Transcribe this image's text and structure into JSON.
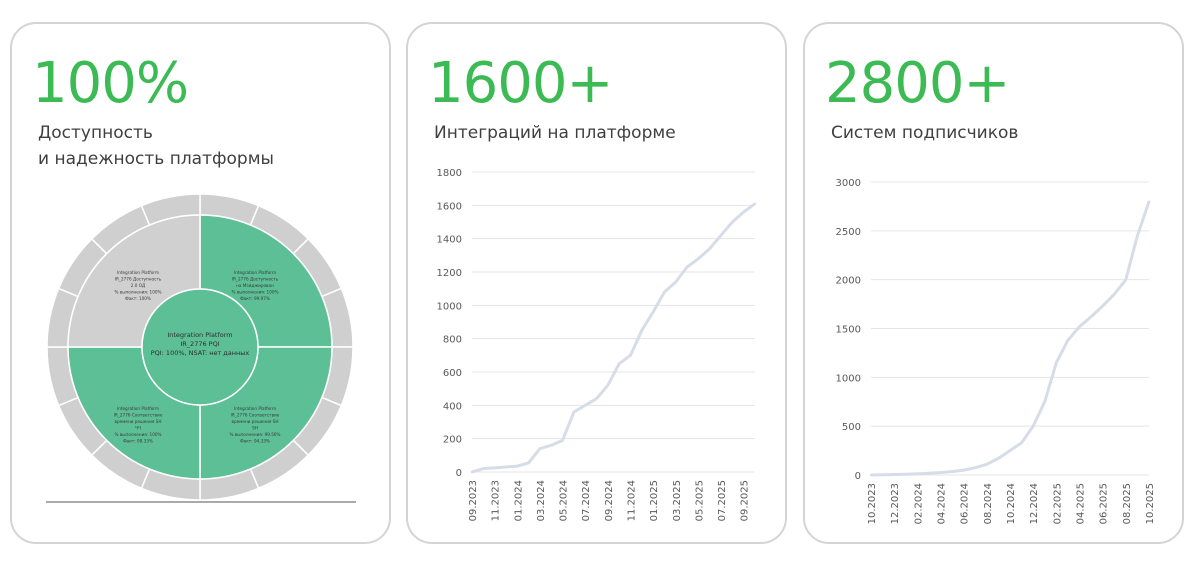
{
  "cards": [
    {
      "metric": "100%",
      "subtitle_line1": "Доступность",
      "subtitle_line2": "и надежность платформы",
      "sunburst": {
        "center_lines": [
          "Integration Platform",
          "IR_2776 PQI",
          "PQI: 100%, NSAT: нет данных"
        ],
        "quadrants": [
          {
            "id": "top-right",
            "color": "#5cbf96",
            "lines": [
              "Integration Platform",
              "IR_2776 Доступность",
              "на Мэйджирован",
              "% выполнения: 100%",
              "Факт: 99.97%"
            ]
          },
          {
            "id": "bottom-right",
            "color": "#5cbf96",
            "lines": [
              "Integration Platform",
              "IR_2776 Соответствие",
              "времени решения SH",
              "SH",
              "% выполнения: 99.56%",
              "Факт: 94.33%"
            ]
          },
          {
            "id": "bottom-left",
            "color": "#5cbf96",
            "lines": [
              "Integration Platform",
              "IR_2776 Соответствие",
              "времени решения SH",
              "ЧЧ",
              "% выполнения: 100%",
              "Факт: 98.33%"
            ]
          },
          {
            "id": "top-left",
            "color": "#d0d0d0",
            "lines": [
              "Integration Platform",
              "IR_2776 Доступность",
              "2.0 ОД",
              "% выполнения: 100%",
              "Факт: 100%"
            ]
          }
        ]
      }
    },
    {
      "metric": "1600+",
      "subtitle": "Интеграций на платформе"
    },
    {
      "metric": "2800+",
      "subtitle": "Систем подписчиков"
    }
  ],
  "colors": {
    "accent": "#3cba54",
    "line": "#d6dde8",
    "grid": "#e4e4e4",
    "border": "#d4d4d4"
  },
  "chart_data": [
    {
      "type": "line",
      "series": [
        {
          "x": [
            "09.2023",
            "10.2023",
            "11.2023",
            "12.2023",
            "01.2024",
            "02.2024",
            "03.2024",
            "04.2024",
            "05.2024",
            "06.2024",
            "07.2024",
            "08.2024",
            "09.2024",
            "10.2024",
            "11.2024",
            "12.2024",
            "01.2025",
            "02.2025",
            "03.2025",
            "04.2025",
            "05.2025",
            "06.2025",
            "07.2025",
            "08.2025",
            "09.2025",
            "10.2025"
          ],
          "values": [
            0,
            20,
            25,
            30,
            35,
            55,
            140,
            160,
            190,
            360,
            400,
            440,
            520,
            650,
            700,
            850,
            960,
            1080,
            1140,
            1230,
            1280,
            1340,
            1420,
            1500,
            1560,
            1610
          ]
        }
      ],
      "ylim": [
        0,
        1800
      ],
      "yticks": [
        "0",
        "200",
        "400",
        "600",
        "800",
        "1000",
        "1200",
        "1400",
        "1600",
        "1800"
      ],
      "xtick_labels": [
        "09.2023",
        "11.2023",
        "01.2024",
        "03.2024",
        "05.2024",
        "07.2024",
        "09.2024",
        "11.2024",
        "01.2025",
        "03.2025",
        "05.2025",
        "07.2025",
        "09.2025"
      ],
      "grid": true
    },
    {
      "type": "line",
      "series": [
        {
          "x": [
            "10.2023",
            "11.2023",
            "12.2023",
            "01.2024",
            "02.2024",
            "03.2024",
            "04.2024",
            "05.2024",
            "06.2024",
            "07.2024",
            "08.2024",
            "09.2024",
            "10.2024",
            "11.2024",
            "12.2024",
            "01.2025",
            "02.2025",
            "03.2025",
            "04.2025",
            "05.2025",
            "06.2025",
            "07.2025",
            "08.2025",
            "09.2025",
            "10.2025"
          ],
          "values": [
            0,
            2,
            5,
            8,
            12,
            18,
            25,
            35,
            50,
            75,
            110,
            170,
            250,
            330,
            500,
            750,
            1150,
            1380,
            1520,
            1620,
            1730,
            1850,
            2000,
            2450,
            2800
          ]
        }
      ],
      "ylim": [
        0,
        3000
      ],
      "yticks": [
        "0",
        "500",
        "1000",
        "1500",
        "2000",
        "2500",
        "3000"
      ],
      "xtick_labels": [
        "10.2023",
        "12.2023",
        "02.2024",
        "04.2024",
        "06.2024",
        "08.2024",
        "10.2024",
        "12.2024",
        "02.2025",
        "04.2025",
        "06.2025",
        "08.2025",
        "10.2025"
      ],
      "grid": true
    }
  ]
}
